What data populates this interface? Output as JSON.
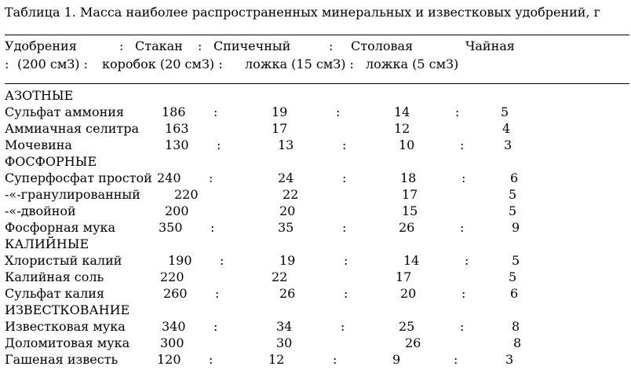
{
  "title": "Таблица 1. Масса наиболее распространенных минеральных и известковых удобрений, г",
  "header": {
    "line1": {
      "c1": "Удобрения",
      "s1": ":",
      "c2": "Стакан",
      "s2": ":",
      "c3": "Спичечный",
      "s3": ":",
      "c4": "Столовая",
      "c5": "Чайная"
    },
    "line2": {
      "s0": ":",
      "c1": "(200 смЗ) :",
      "c2": "коробок (20 смЗ) :",
      "c3": "ложка (15 смЗ) :",
      "c4": "ложка (5 смЗ)"
    }
  },
  "groups": [
    {
      "name": "АЗОТНЫЕ",
      "rows": [
        {
          "name": "Сульфат аммония",
          "glass": "186",
          "box": "19",
          "tbsp": "14",
          "tsp": "5",
          "colon1": ":",
          "colon2": ":",
          "colon3": ":"
        },
        {
          "name": "Аммиачная селитра",
          "glass": "163",
          "box": "17",
          "tbsp": "12",
          "tsp": "4",
          "colon1": "",
          "colon2": "",
          "colon3": ""
        },
        {
          "name": "Мочевина",
          "glass": "130",
          "box": "13",
          "tbsp": "10",
          "tsp": "3",
          "colon1": ":",
          "colon2": ":",
          "colon3": ":"
        }
      ]
    },
    {
      "name": "ФОСФОРНЫЕ",
      "rows": [
        {
          "name": "Суперфосфат простой",
          "glass": "240",
          "box": "24",
          "tbsp": "18",
          "tsp": "6",
          "colon1": ":",
          "colon2": ":",
          "colon3": ":"
        },
        {
          "name": "-«-гранулированный",
          "glass": "220",
          "box": "22",
          "tbsp": "17",
          "tsp": "5",
          "colon1": "",
          "colon2": "",
          "colon3": ""
        },
        {
          "name": "-«-двойной",
          "glass": "200",
          "box": "20",
          "tbsp": "15",
          "tsp": "5",
          "colon1": "",
          "colon2": "",
          "colon3": ""
        },
        {
          "name": "Фосфорная мука",
          "glass": "350",
          "box": "35",
          "tbsp": "26",
          "tsp": "9",
          "colon1": ":",
          "colon2": ":",
          "colon3": ":"
        }
      ]
    },
    {
      "name": "КАЛИЙНЫЕ",
      "rows": [
        {
          "name": "Хлористый калий",
          "glass": "190",
          "box": "19",
          "tbsp": "14",
          "tsp": "5",
          "colon1": ":",
          "colon2": ":",
          "colon3": ":"
        },
        {
          "name": "Калийная соль",
          "glass": "220",
          "box": "22",
          "tbsp": "17",
          "tsp": "5",
          "colon1": "",
          "colon2": "",
          "colon3": ""
        },
        {
          "name": "Сульфат калия",
          "glass": "260",
          "box": "26",
          "tbsp": "20",
          "tsp": "6",
          "colon1": ":",
          "colon2": ":",
          "colon3": ":"
        }
      ]
    },
    {
      "name": "ИЗВЕСТКОВАНИЕ",
      "rows": [
        {
          "name": "Известковая мука",
          "glass": "340",
          "box": "34",
          "tbsp": "25",
          "tsp": "8",
          "colon1": ":",
          "colon2": ":",
          "colon3": ":"
        },
        {
          "name": "Доломитовая мука",
          "glass": "300",
          "box": "30",
          "tbsp": "26",
          "tsp": "8",
          "colon1": "",
          "colon2": "",
          "colon3": ""
        },
        {
          "name": "Гашеная известь",
          "glass": "120",
          "box": "12",
          "tbsp": "9",
          "tsp": "3",
          "colon1": ":",
          "colon2": ":",
          "colon3": ":"
        }
      ]
    }
  ]
}
